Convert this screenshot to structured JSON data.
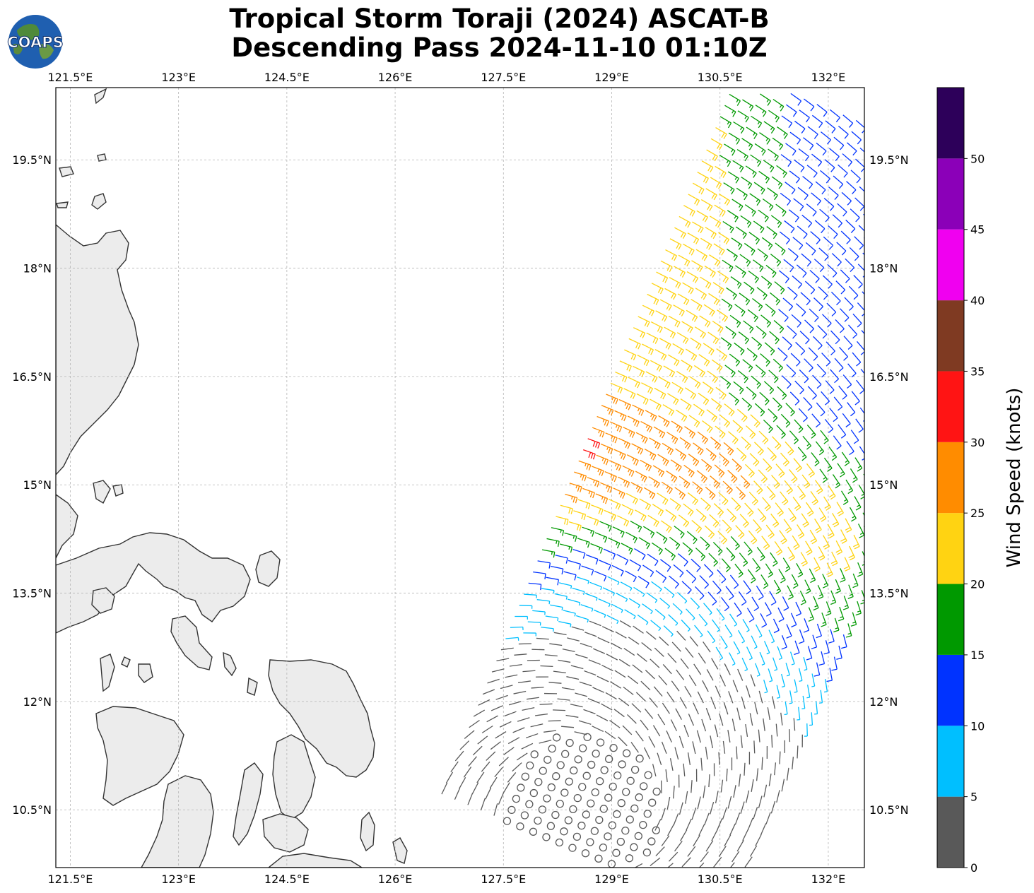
{
  "title": {
    "line1": "Tropical Storm Toraji (2024) ASCAT-B",
    "line2": "Descending Pass 2024-11-10 01:10Z"
  },
  "logo": {
    "text": "COAPS",
    "icon": "globe-logo"
  },
  "map": {
    "lon_range": [
      121.3,
      132.5
    ],
    "lat_range": [
      9.7,
      20.5
    ],
    "lon_ticks": [
      {
        "value": 121.5,
        "label": "121.5°E"
      },
      {
        "value": 123.0,
        "label": "123°E"
      },
      {
        "value": 124.5,
        "label": "124.5°E"
      },
      {
        "value": 126.0,
        "label": "126°E"
      },
      {
        "value": 127.5,
        "label": "127.5°E"
      },
      {
        "value": 129.0,
        "label": "129°E"
      },
      {
        "value": 130.5,
        "label": "130.5°E"
      },
      {
        "value": 132.0,
        "label": "132°E"
      }
    ],
    "lat_ticks": [
      {
        "value": 19.5,
        "label": "19.5°N"
      },
      {
        "value": 18.0,
        "label": "18°N"
      },
      {
        "value": 16.5,
        "label": "16.5°N"
      },
      {
        "value": 15.0,
        "label": "15°N"
      },
      {
        "value": 13.5,
        "label": "13.5°N"
      },
      {
        "value": 12.0,
        "label": "12°N"
      },
      {
        "value": 10.5,
        "label": "10.5°N"
      }
    ],
    "storm_center": {
      "lon": 128.6,
      "lat": 10.5
    },
    "land_color": "#e8e8e8",
    "coast_color": "#333333",
    "grid_color": "#b5b5b5"
  },
  "colorbar": {
    "label": "Wind Speed (knots)",
    "bins": [
      {
        "min": 0,
        "max": 5,
        "color": "#595959"
      },
      {
        "min": 5,
        "max": 10,
        "color": "#00bfff"
      },
      {
        "min": 10,
        "max": 15,
        "color": "#0033ff"
      },
      {
        "min": 15,
        "max": 20,
        "color": "#009900"
      },
      {
        "min": 20,
        "max": 25,
        "color": "#ffd312"
      },
      {
        "min": 25,
        "max": 30,
        "color": "#ff8c00"
      },
      {
        "min": 30,
        "max": 35,
        "color": "#ff1414"
      },
      {
        "min": 35,
        "max": 40,
        "color": "#7f3a22"
      },
      {
        "min": 40,
        "max": 45,
        "color": "#f000f0"
      },
      {
        "min": 45,
        "max": 50,
        "color": "#8b00b8"
      },
      {
        "min": 50,
        "max": 55,
        "color": "#2d005a"
      }
    ],
    "tick_labels": [
      "0",
      "5",
      "10",
      "15",
      "20",
      "25",
      "30",
      "35",
      "40",
      "45",
      "50"
    ]
  }
}
